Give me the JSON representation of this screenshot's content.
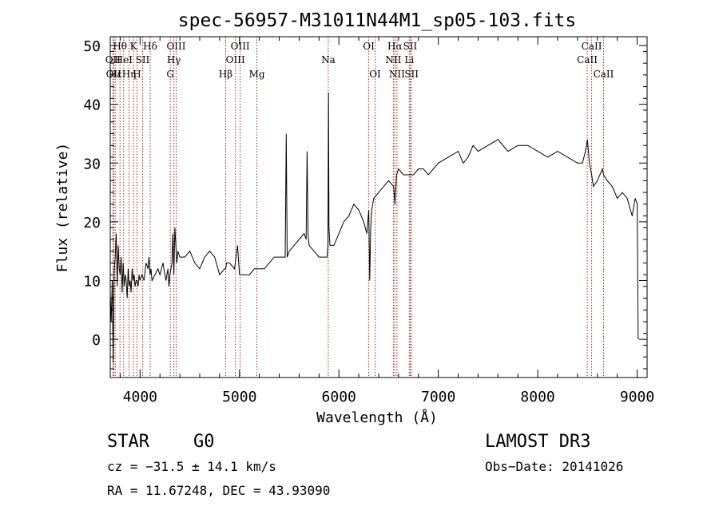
{
  "chart_data": {
    "type": "line",
    "title": "spec-56957-M31011N44M1_sp05-103.fits",
    "xlabel": "Wavelength (Å)",
    "ylabel": "Flux (relative)",
    "xlim": [
      3700,
      9100
    ],
    "ylim": [
      -6.5,
      51.5
    ],
    "xticks": [
      4000,
      5000,
      6000,
      7000,
      8000,
      9000
    ],
    "xtick_labels": [
      "4000",
      "5000",
      "6000",
      "7000",
      "8000",
      "9000"
    ],
    "yticks": [
      0,
      10,
      20,
      30,
      40,
      50
    ],
    "ytick_labels": [
      "0",
      "10",
      "20",
      "30",
      "40",
      "50"
    ],
    "line_color": "#000000",
    "marker_color": "#b22222",
    "series": [
      {
        "name": "spectrum",
        "x": [
          3700,
          3710,
          3720,
          3730,
          3740,
          3750,
          3760,
          3770,
          3780,
          3790,
          3800,
          3810,
          3820,
          3830,
          3840,
          3850,
          3860,
          3870,
          3880,
          3890,
          3900,
          3910,
          3920,
          3930,
          3940,
          3950,
          3960,
          3970,
          3980,
          3990,
          4000,
          4020,
          4040,
          4060,
          4080,
          4090,
          4100,
          4110,
          4120,
          4150,
          4180,
          4200,
          4230,
          4260,
          4280,
          4290,
          4300,
          4320,
          4330,
          4340,
          4350,
          4360,
          4370,
          4380,
          4400,
          4450,
          4500,
          4550,
          4600,
          4650,
          4700,
          4750,
          4800,
          4850,
          4861,
          4870,
          4900,
          4950,
          4980,
          5000,
          5050,
          5100,
          5150,
          5200,
          5250,
          5300,
          5350,
          5400,
          5440,
          5460,
          5470,
          5480,
          5500,
          5550,
          5600,
          5650,
          5670,
          5680,
          5690,
          5700,
          5750,
          5800,
          5850,
          5880,
          5890,
          5895,
          5900,
          5910,
          5950,
          6000,
          6050,
          6100,
          6150,
          6200,
          6250,
          6280,
          6300,
          6310,
          6320,
          6330,
          6350,
          6400,
          6450,
          6500,
          6550,
          6563,
          6580,
          6600,
          6650,
          6700,
          6750,
          6800,
          6850,
          6900,
          6950,
          7000,
          7100,
          7200,
          7250,
          7300,
          7350,
          7400,
          7500,
          7600,
          7700,
          7800,
          7900,
          8000,
          8100,
          8200,
          8300,
          8400,
          8450,
          8480,
          8500,
          8520,
          8542,
          8560,
          8600,
          8650,
          8662,
          8700,
          8750,
          8800,
          8850,
          8900,
          8950,
          8980,
          9000,
          9010
        ],
        "y": [
          8,
          3,
          10,
          -4,
          12,
          14,
          18,
          9,
          16,
          12,
          11,
          14,
          8,
          13,
          9,
          11,
          10,
          7,
          12,
          9,
          10,
          8,
          12,
          10,
          11,
          9,
          10,
          10,
          9,
          11,
          10,
          11,
          10,
          13,
          12,
          14,
          11,
          12,
          10,
          11,
          12,
          11,
          13,
          10,
          12,
          9,
          11,
          13,
          18,
          11,
          19,
          16,
          13,
          15,
          14,
          14,
          15,
          13,
          12,
          14,
          15,
          14,
          11,
          12,
          12,
          13,
          13,
          12,
          16,
          11,
          11,
          11,
          12,
          12,
          12,
          13,
          14,
          14,
          14,
          14,
          35,
          14,
          15,
          16,
          17,
          18,
          17,
          32,
          18,
          16,
          15,
          14,
          14,
          14,
          16,
          42,
          19,
          16,
          16,
          18,
          20,
          21,
          23,
          22,
          20,
          18,
          22,
          10,
          19,
          22,
          24,
          25,
          26,
          27,
          26,
          23,
          28,
          29,
          28,
          28,
          28,
          29,
          29,
          28,
          29,
          30,
          31,
          32,
          30,
          31,
          33,
          32,
          33,
          34,
          32,
          33,
          33,
          32,
          31,
          32,
          31,
          30,
          30,
          32,
          34,
          30,
          28,
          26,
          27,
          29,
          28,
          27,
          26,
          24,
          25,
          24,
          21,
          24,
          23,
          0
        ]
      }
    ],
    "lines": [
      {
        "wl": 3727,
        "label": "OII",
        "row": 2
      },
      {
        "wl": 3734,
        "label": "OII",
        "row": 3
      },
      {
        "wl": 3750,
        "label": "Hε",
        "row": 3
      },
      {
        "wl": 3798,
        "label": "Hθ",
        "row": 1
      },
      {
        "wl": 3835,
        "label": "HeI",
        "row": 2
      },
      {
        "wl": 3889,
        "label": "Hη",
        "row": 3
      },
      {
        "wl": 3934,
        "label": "K",
        "row": 1
      },
      {
        "wl": 3969,
        "label": "H",
        "row": 3
      },
      {
        "wl": 4026,
        "label": "SII",
        "row": 2
      },
      {
        "wl": 4102,
        "label": "Hδ",
        "row": 1
      },
      {
        "wl": 4304,
        "label": "G",
        "row": 3
      },
      {
        "wl": 4340,
        "label": "Hγ",
        "row": 2
      },
      {
        "wl": 4363,
        "label": "OIII",
        "row": 1
      },
      {
        "wl": 4861,
        "label": "Hβ",
        "row": 3
      },
      {
        "wl": 4959,
        "label": "OIII",
        "row": 2
      },
      {
        "wl": 5007,
        "label": "OIII",
        "row": 1
      },
      {
        "wl": 5175,
        "label": "Mg",
        "row": 3
      },
      {
        "wl": 5893,
        "label": "Na",
        "row": 2
      },
      {
        "wl": 6300,
        "label": "OI",
        "row": 1
      },
      {
        "wl": 6364,
        "label": "OI",
        "row": 3
      },
      {
        "wl": 6548,
        "label": "NII",
        "row": 2
      },
      {
        "wl": 6563,
        "label": "Hα",
        "row": 1
      },
      {
        "wl": 6584,
        "label": "NII",
        "row": 3
      },
      {
        "wl": 6708,
        "label": "Li",
        "row": 2
      },
      {
        "wl": 6717,
        "label": "SII",
        "row": 1
      },
      {
        "wl": 6731,
        "label": "SII",
        "row": 3
      },
      {
        "wl": 8498,
        "label": "CaII",
        "row": 2
      },
      {
        "wl": 8542,
        "label": "CaII",
        "row": 1
      },
      {
        "wl": 8662,
        "label": "CaII",
        "row": 3
      }
    ]
  },
  "info": {
    "object_class": "STAR",
    "subclass": "G0",
    "survey": "LAMOST DR3",
    "velocity": "cz = −31.5 ± 14.1 km/s",
    "obs_date": "Obs−Date: 20141026",
    "coords": "RA =  11.67248, DEC =  43.93090"
  }
}
